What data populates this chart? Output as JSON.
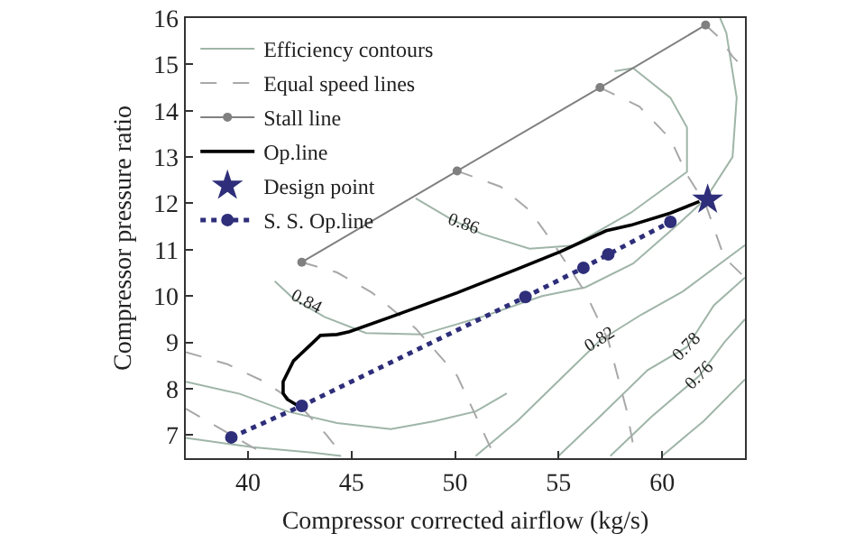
{
  "chart_data": {
    "type": "line",
    "xlabel": "Compressor corrected airflow (kg/s)",
    "ylabel": "Compressor pressure ratio",
    "xlim": [
      37,
      64
    ],
    "xticks": [
      40,
      45,
      50,
      55,
      60
    ],
    "ylim": [
      6.5,
      16
    ],
    "yticks": [
      7,
      8,
      9,
      10,
      11,
      12,
      13,
      14,
      15,
      16
    ],
    "grid": false,
    "legend": "top left",
    "annotations": [
      {
        "text": "0.86",
        "x": 50.4,
        "y": 11.53
      },
      {
        "text": "0.84",
        "x": 42.8,
        "y": 9.87
      },
      {
        "text": "0.82",
        "x": 57.0,
        "y": 9.04
      },
      {
        "text": "0.78",
        "x": 61.2,
        "y": 8.9
      },
      {
        "text": "0.76",
        "x": 61.8,
        "y": 8.28
      }
    ],
    "series": [
      {
        "type": "line",
        "name": "Efficiency contours",
        "color": "#9fb5a8",
        "line_style": "solid",
        "marker": "none",
        "x": [
          48.1,
          49.8,
          51.3,
          53.6,
          55.7,
          58.5,
          61.2,
          61.2,
          60.4,
          58.6,
          57.7
        ],
        "values": [
          12.11,
          11.66,
          11.34,
          11.02,
          11.09,
          11.8,
          12.68,
          13.64,
          14.28,
          14.92,
          14.85
        ]
      },
      {
        "type": "line",
        "color": "#9fb5a8",
        "line_style": "solid",
        "marker": "none",
        "x": [
          41.3,
          42.2,
          43.7,
          45.7,
          48.4,
          51.3,
          54.2,
          56.3,
          58.6,
          60.9,
          62.1,
          63.4,
          63.6,
          63.1,
          62.8
        ],
        "values": [
          10.32,
          9.94,
          9.55,
          9.2,
          9.17,
          9.55,
          10.0,
          10.19,
          10.7,
          11.6,
          12.1,
          13.0,
          14.28,
          15.68,
          16
        ]
      },
      {
        "type": "line",
        "color": "#9fb5a8",
        "line_style": "solid",
        "marker": "none",
        "x": [
          37,
          39.6,
          41.9,
          44.3,
          46.9,
          49,
          51,
          52.5
        ],
        "values": [
          8.15,
          7.89,
          7.51,
          7.26,
          7.13,
          7.3,
          7.51,
          7.9
        ]
      },
      {
        "type": "line",
        "color": "#9fb5a8",
        "line_style": "solid",
        "marker": "none",
        "x": [
          37,
          40.2,
          43.1,
          44.5
        ],
        "values": [
          6.94,
          6.74,
          6.62,
          6.55
        ]
      },
      {
        "type": "line",
        "color": "#9fb5a8",
        "line_style": "solid",
        "marker": "none",
        "x": [
          51.0,
          53.0,
          55.3,
          57.0,
          59.0,
          61.0,
          64
        ],
        "values": [
          6.55,
          7.3,
          8.3,
          9.04,
          9.6,
          10.1,
          11.1
        ]
      },
      {
        "type": "line",
        "color": "#9fb5a8",
        "line_style": "solid",
        "marker": "none",
        "x": [
          55.0,
          57.0,
          59.3,
          61.2,
          62.5,
          64
        ],
        "values": [
          6.55,
          7.4,
          8.4,
          8.9,
          9.8,
          10.4
        ]
      },
      {
        "type": "line",
        "color": "#9fb5a8",
        "line_style": "solid",
        "marker": "none",
        "x": [
          57.5,
          59.5,
          61.8,
          63,
          64
        ],
        "values": [
          6.55,
          7.4,
          8.28,
          9.0,
          9.5
        ]
      },
      {
        "type": "line",
        "color": "#9fb5a8",
        "line_style": "solid",
        "marker": "none",
        "x": [
          60,
          62,
          64
        ],
        "values": [
          6.55,
          7.3,
          8.2
        ]
      },
      {
        "type": "line",
        "name": "Equal speed lines",
        "color": "#a8a8a8",
        "line_style": "dashed",
        "marker": "none",
        "x": [
          42.6,
          44.3,
          46.0,
          48.1,
          50.1,
          51.9
        ],
        "values": [
          10.73,
          10.51,
          10.07,
          9.3,
          8.28,
          6.55
        ]
      },
      {
        "type": "line",
        "color": "#a8a8a8",
        "line_style": "dashed",
        "marker": "none",
        "x": [
          50.1,
          52.2,
          53.6,
          54.8,
          56.3,
          57.4,
          58.3,
          58.7
        ],
        "values": [
          12.7,
          12.36,
          11.85,
          11.1,
          10.07,
          9.04,
          7.51,
          6.55
        ]
      },
      {
        "type": "line",
        "color": "#a8a8a8",
        "line_style": "dashed",
        "marker": "none",
        "x": [
          57.0,
          58.9,
          60.4,
          61.2,
          62.1,
          63.0,
          64
        ],
        "values": [
          14.5,
          14.09,
          13.39,
          12.62,
          11.98,
          10.83,
          10.4
        ]
      },
      {
        "type": "line",
        "color": "#a8a8a8",
        "line_style": "dashed",
        "marker": "none",
        "x": [
          62.1,
          62.8,
          63.4,
          64
        ],
        "values": [
          15.85,
          15.56,
          15.17,
          14.9
        ]
      },
      {
        "type": "line",
        "color": "#a8a8a8",
        "line_style": "dashed",
        "marker": "none",
        "x": [
          37,
          39,
          40.8,
          42.5,
          43.8,
          44.6
        ],
        "values": [
          8.79,
          8.53,
          8.15,
          7.64,
          7.0,
          6.55
        ]
      },
      {
        "type": "line",
        "color": "#a8a8a8",
        "line_style": "dashed",
        "marker": "none",
        "x": [
          37,
          38.7,
          40.2,
          41.1
        ],
        "values": [
          7.57,
          7.13,
          6.74,
          6.55
        ]
      },
      {
        "type": "line",
        "name": "Stall line",
        "color": "#808080",
        "line_style": "solid",
        "marker": "circle",
        "x": [
          42.6,
          50.1,
          57.0,
          62.1
        ],
        "values": [
          10.73,
          12.7,
          14.5,
          15.85
        ]
      },
      {
        "type": "line",
        "name": "Op.line",
        "color": "#000000",
        "line_style": "solid",
        "marker": "none",
        "x": [
          61.8,
          60.4,
          58.5,
          57.3,
          55.1,
          53.0,
          50.1,
          46.9,
          44.9,
          44.3,
          43.5,
          43.1,
          42.2,
          41.7,
          41.7,
          41.9,
          42.5
        ],
        "values": [
          12.04,
          11.79,
          11.53,
          11.41,
          10.96,
          10.58,
          10.07,
          9.55,
          9.23,
          9.17,
          9.15,
          8.98,
          8.6,
          8.15,
          7.9,
          7.77,
          7.61
        ]
      },
      {
        "type": "line",
        "name": "S. S. Op.line",
        "color": "#2e2e7a",
        "line_style": "dotted",
        "marker": "circle",
        "x": [
          39.2,
          42.6,
          53.4,
          56.2,
          57.4,
          60.4
        ],
        "values": [
          6.95,
          7.63,
          9.98,
          10.61,
          10.9,
          11.6
        ]
      },
      {
        "type": "scatter",
        "name": "Design point",
        "color": "#2e2e7a",
        "marker": "star",
        "x": [
          62.2
        ],
        "values": [
          12.08
        ]
      }
    ]
  }
}
